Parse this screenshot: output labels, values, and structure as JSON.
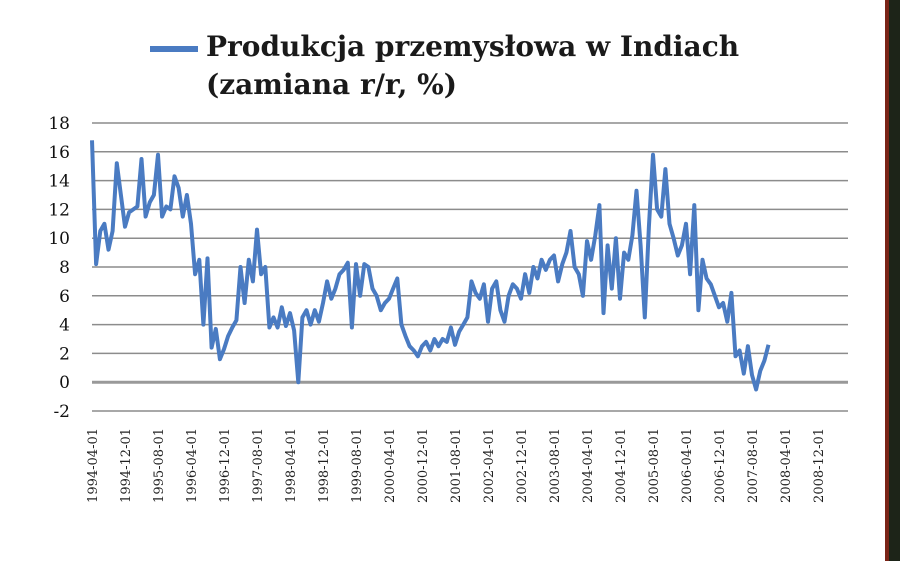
{
  "colors": {
    "series": "#4a7bc2",
    "grid": "#8c8c8c",
    "zero_line": "#999999",
    "right_edge": "#1d2418",
    "right_edge_accent": "#7a2417"
  },
  "chart_data": {
    "type": "line",
    "title": "",
    "xlabel": "",
    "ylabel": "",
    "legend": {
      "placement": "top",
      "line1": "Produkcja przemysłowa w Indiach",
      "line2": "(zamiana r/r, %)"
    },
    "ylim": [
      -2,
      18
    ],
    "y_ticks": [
      "18",
      "16",
      "14",
      "12",
      "10",
      "8",
      "6",
      "4",
      "2",
      "0",
      "-2"
    ],
    "grid": "horizontal",
    "x_tick_labels": [
      "1994-04-01",
      "1994-12-01",
      "1995-08-01",
      "1996-04-01",
      "1996-12-01",
      "1997-08-01",
      "1998-04-01",
      "1998-12-01",
      "1999-08-01",
      "2000-04-01",
      "2000-12-01",
      "2001-08-01",
      "2002-04-01",
      "2002-12-01",
      "2003-08-01",
      "2004-04-01",
      "2004-12-01",
      "2005-08-01",
      "2006-04-01",
      "2006-12-01",
      "2007-08-01",
      "2008-04-01",
      "2008-12-01"
    ],
    "series": [
      {
        "name": "Produkcja przemysłowa w Indiach (zamiana r/r, %)",
        "points": [
          [
            "1994-04",
            16.8
          ],
          [
            "1994-05",
            8.2
          ],
          [
            "1994-06",
            10.5
          ],
          [
            "1994-07",
            11.0
          ],
          [
            "1994-08",
            9.2
          ],
          [
            "1994-09",
            10.5
          ],
          [
            "1994-10",
            15.2
          ],
          [
            "1994-11",
            13.0
          ],
          [
            "1994-12",
            10.8
          ],
          [
            "1995-01",
            11.8
          ],
          [
            "1995-02",
            12.0
          ],
          [
            "1995-03",
            12.2
          ],
          [
            "1995-04",
            15.5
          ],
          [
            "1995-05",
            11.5
          ],
          [
            "1995-06",
            12.5
          ],
          [
            "1995-07",
            13.0
          ],
          [
            "1995-08",
            15.8
          ],
          [
            "1995-09",
            11.5
          ],
          [
            "1995-10",
            12.2
          ],
          [
            "1995-11",
            12.0
          ],
          [
            "1995-12",
            14.3
          ],
          [
            "1996-01",
            13.5
          ],
          [
            "1996-02",
            11.5
          ],
          [
            "1996-03",
            13.0
          ],
          [
            "1996-04",
            11.0
          ],
          [
            "1996-05",
            7.5
          ],
          [
            "1996-06",
            8.5
          ],
          [
            "1996-07",
            4.0
          ],
          [
            "1996-08",
            8.6
          ],
          [
            "1996-09",
            2.4
          ],
          [
            "1996-10",
            3.7
          ],
          [
            "1996-11",
            1.6
          ],
          [
            "1996-12",
            2.3
          ],
          [
            "1997-01",
            3.2
          ],
          [
            "1997-02",
            3.8
          ],
          [
            "1997-03",
            4.3
          ],
          [
            "1997-04",
            8.0
          ],
          [
            "1997-05",
            5.5
          ],
          [
            "1997-06",
            8.5
          ],
          [
            "1997-07",
            7.0
          ],
          [
            "1997-08",
            10.6
          ],
          [
            "1997-09",
            7.5
          ],
          [
            "1997-10",
            8.0
          ],
          [
            "1997-11",
            3.8
          ],
          [
            "1997-12",
            4.5
          ],
          [
            "1998-01",
            3.8
          ],
          [
            "1998-02",
            5.2
          ],
          [
            "1998-03",
            3.9
          ],
          [
            "1998-04",
            4.8
          ],
          [
            "1998-05",
            3.6
          ],
          [
            "1998-06",
            0.0
          ],
          [
            "1998-07",
            4.5
          ],
          [
            "1998-08",
            5.0
          ],
          [
            "1998-09",
            4.0
          ],
          [
            "1998-10",
            5.0
          ],
          [
            "1998-11",
            4.2
          ],
          [
            "1998-12",
            5.5
          ],
          [
            "1999-01",
            7.0
          ],
          [
            "1999-02",
            5.8
          ],
          [
            "1999-03",
            6.5
          ],
          [
            "1999-04",
            7.5
          ],
          [
            "1999-05",
            7.8
          ],
          [
            "1999-06",
            8.3
          ],
          [
            "1999-07",
            3.8
          ],
          [
            "1999-08",
            8.2
          ],
          [
            "1999-09",
            6.0
          ],
          [
            "1999-10",
            8.2
          ],
          [
            "1999-11",
            8.0
          ],
          [
            "1999-12",
            6.5
          ],
          [
            "2000-01",
            6.0
          ],
          [
            "2000-02",
            5.0
          ],
          [
            "2000-03",
            5.5
          ],
          [
            "2000-04",
            5.8
          ],
          [
            "2000-05",
            6.5
          ],
          [
            "2000-06",
            7.2
          ],
          [
            "2000-07",
            4.0
          ],
          [
            "2000-08",
            3.2
          ],
          [
            "2000-09",
            2.5
          ],
          [
            "2000-10",
            2.2
          ],
          [
            "2000-11",
            1.8
          ],
          [
            "2000-12",
            2.5
          ],
          [
            "2001-01",
            2.8
          ],
          [
            "2001-02",
            2.2
          ],
          [
            "2001-03",
            3.0
          ],
          [
            "2001-04",
            2.5
          ],
          [
            "2001-05",
            3.0
          ],
          [
            "2001-06",
            2.8
          ],
          [
            "2001-07",
            3.8
          ],
          [
            "2001-08",
            2.6
          ],
          [
            "2001-09",
            3.5
          ],
          [
            "2001-10",
            4.0
          ],
          [
            "2001-11",
            4.5
          ],
          [
            "2001-12",
            7.0
          ],
          [
            "2002-01",
            6.2
          ],
          [
            "2002-02",
            5.8
          ],
          [
            "2002-03",
            6.8
          ],
          [
            "2002-04",
            4.2
          ],
          [
            "2002-05",
            6.5
          ],
          [
            "2002-06",
            7.0
          ],
          [
            "2002-07",
            5.0
          ],
          [
            "2002-08",
            4.2
          ],
          [
            "2002-09",
            6.0
          ],
          [
            "2002-10",
            6.8
          ],
          [
            "2002-11",
            6.5
          ],
          [
            "2002-12",
            5.8
          ],
          [
            "2003-01",
            7.5
          ],
          [
            "2003-02",
            6.2
          ],
          [
            "2003-03",
            8.0
          ],
          [
            "2003-04",
            7.2
          ],
          [
            "2003-05",
            8.5
          ],
          [
            "2003-06",
            7.8
          ],
          [
            "2003-07",
            8.5
          ],
          [
            "2003-08",
            8.8
          ],
          [
            "2003-09",
            7.0
          ],
          [
            "2003-10",
            8.2
          ],
          [
            "2003-11",
            9.0
          ],
          [
            "2003-12",
            10.5
          ],
          [
            "2004-01",
            8.0
          ],
          [
            "2004-02",
            7.5
          ],
          [
            "2004-03",
            6.0
          ],
          [
            "2004-04",
            9.8
          ],
          [
            "2004-05",
            8.5
          ],
          [
            "2004-06",
            10.2
          ],
          [
            "2004-07",
            12.3
          ],
          [
            "2004-08",
            4.8
          ],
          [
            "2004-09",
            9.5
          ],
          [
            "2004-10",
            6.5
          ],
          [
            "2004-11",
            10.0
          ],
          [
            "2004-12",
            5.8
          ],
          [
            "2005-01",
            9.0
          ],
          [
            "2005-02",
            8.5
          ],
          [
            "2005-03",
            10.2
          ],
          [
            "2005-04",
            13.3
          ],
          [
            "2005-05",
            9.5
          ],
          [
            "2005-06",
            4.5
          ],
          [
            "2005-07",
            10.8
          ],
          [
            "2005-08",
            15.8
          ],
          [
            "2005-09",
            12.0
          ],
          [
            "2005-10",
            11.5
          ],
          [
            "2005-11",
            14.8
          ],
          [
            "2005-12",
            11.0
          ],
          [
            "2006-01",
            10.0
          ],
          [
            "2006-02",
            8.8
          ],
          [
            "2006-03",
            9.5
          ],
          [
            "2006-04",
            11.0
          ],
          [
            "2006-05",
            7.5
          ],
          [
            "2006-06",
            12.3
          ],
          [
            "2006-07",
            5.0
          ],
          [
            "2006-08",
            8.5
          ],
          [
            "2006-09",
            7.2
          ],
          [
            "2006-10",
            6.8
          ],
          [
            "2006-11",
            6.0
          ],
          [
            "2006-12",
            5.2
          ],
          [
            "2007-01",
            5.5
          ],
          [
            "2007-02",
            4.2
          ],
          [
            "2007-03",
            6.2
          ],
          [
            "2007-04",
            1.8
          ],
          [
            "2007-05",
            2.2
          ],
          [
            "2007-06",
            0.6
          ],
          [
            "2007-07",
            2.5
          ],
          [
            "2007-08",
            0.5
          ],
          [
            "2007-09",
            -0.5
          ],
          [
            "2007-10",
            0.8
          ],
          [
            "2007-11",
            1.5
          ],
          [
            "2007-12",
            2.6
          ]
        ]
      }
    ]
  }
}
